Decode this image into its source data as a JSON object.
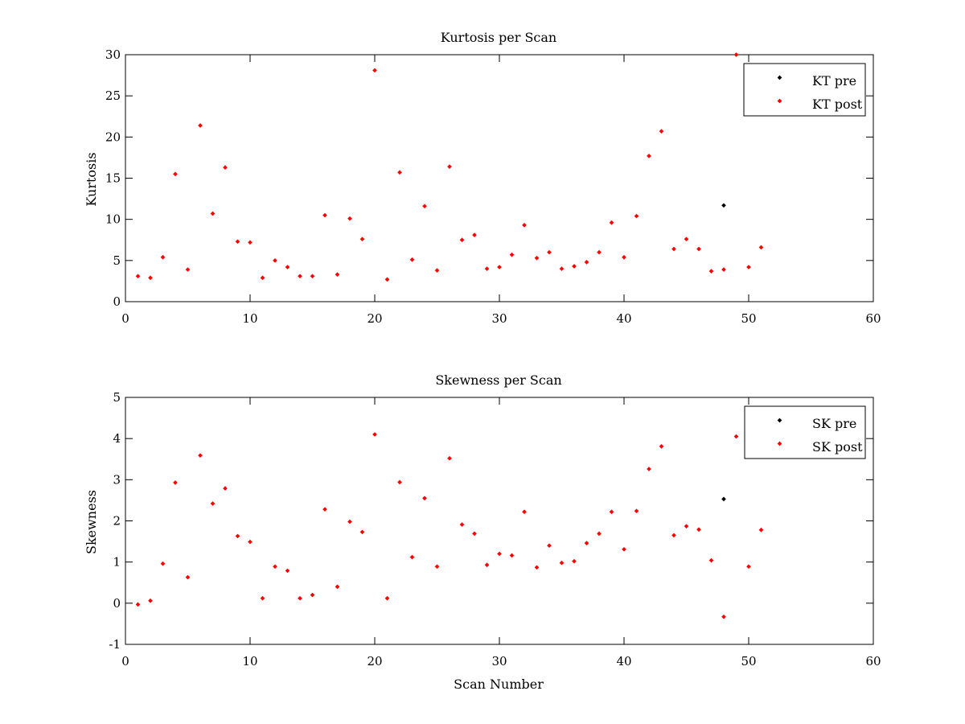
{
  "chart_data": [
    {
      "type": "scatter",
      "title": "Kurtosis per Scan",
      "xlabel": "",
      "ylabel": "Kurtosis",
      "xlim": [
        0,
        60
      ],
      "ylim": [
        0,
        30
      ],
      "xticks": [
        0,
        10,
        20,
        30,
        40,
        50,
        60
      ],
      "yticks": [
        0,
        5,
        10,
        15,
        20,
        25,
        30
      ],
      "grid": false,
      "legend_position": "top-right",
      "series": [
        {
          "name": "KT pre",
          "color": "#000000",
          "x": [
            48
          ],
          "y": [
            11.7
          ]
        },
        {
          "name": "KT post",
          "color": "#ff0000",
          "x": [
            1,
            2,
            3,
            4,
            5,
            6,
            7,
            8,
            9,
            10,
            11,
            12,
            13,
            14,
            15,
            16,
            17,
            18,
            19,
            20,
            21,
            22,
            23,
            24,
            25,
            26,
            27,
            28,
            29,
            30,
            31,
            32,
            33,
            34,
            35,
            36,
            37,
            38,
            39,
            40,
            41,
            42,
            43,
            44,
            45,
            46,
            47,
            48,
            49,
            50,
            51
          ],
          "y": [
            3.1,
            2.9,
            5.4,
            15.5,
            3.9,
            21.4,
            10.7,
            16.3,
            7.3,
            7.2,
            2.9,
            5.0,
            4.2,
            3.1,
            3.1,
            10.5,
            3.3,
            10.1,
            7.6,
            28.1,
            2.7,
            15.7,
            5.1,
            11.6,
            3.8,
            16.4,
            7.5,
            8.1,
            4.0,
            4.2,
            5.7,
            9.3,
            5.3,
            6.0,
            4.0,
            4.3,
            4.8,
            6.0,
            9.6,
            5.4,
            10.4,
            17.7,
            20.7,
            6.4,
            7.6,
            6.4,
            3.7,
            3.9,
            30.0,
            4.2,
            6.6
          ]
        }
      ]
    },
    {
      "type": "scatter",
      "title": "Skewness per Scan",
      "xlabel": "Scan Number",
      "ylabel": "Skewness",
      "xlim": [
        0,
        60
      ],
      "ylim": [
        -1,
        5
      ],
      "xticks": [
        0,
        10,
        20,
        30,
        40,
        50,
        60
      ],
      "yticks": [
        -1,
        0,
        1,
        2,
        3,
        4,
        5
      ],
      "grid": false,
      "legend_position": "top-right",
      "series": [
        {
          "name": "SK pre",
          "color": "#000000",
          "x": [
            48
          ],
          "y": [
            2.53
          ]
        },
        {
          "name": "SK post",
          "color": "#ff0000",
          "x": [
            1,
            2,
            3,
            4,
            5,
            6,
            7,
            8,
            9,
            10,
            11,
            12,
            13,
            14,
            15,
            16,
            17,
            18,
            19,
            20,
            21,
            22,
            23,
            24,
            25,
            26,
            27,
            28,
            29,
            30,
            31,
            32,
            33,
            34,
            35,
            36,
            37,
            38,
            39,
            40,
            41,
            42,
            43,
            44,
            45,
            46,
            47,
            48,
            49,
            50,
            51
          ],
          "y": [
            -0.03,
            0.06,
            0.96,
            2.93,
            0.63,
            3.59,
            2.42,
            2.79,
            1.63,
            1.49,
            0.12,
            0.89,
            0.79,
            0.12,
            0.2,
            2.28,
            0.4,
            1.98,
            1.73,
            4.1,
            0.12,
            2.94,
            1.12,
            2.55,
            0.89,
            3.52,
            1.91,
            1.69,
            0.93,
            1.2,
            1.16,
            2.22,
            0.87,
            1.4,
            0.98,
            1.02,
            1.46,
            1.69,
            2.22,
            1.31,
            2.24,
            3.26,
            3.81,
            1.65,
            1.87,
            1.79,
            1.04,
            -0.33,
            4.05,
            0.89,
            1.78
          ]
        }
      ]
    }
  ]
}
